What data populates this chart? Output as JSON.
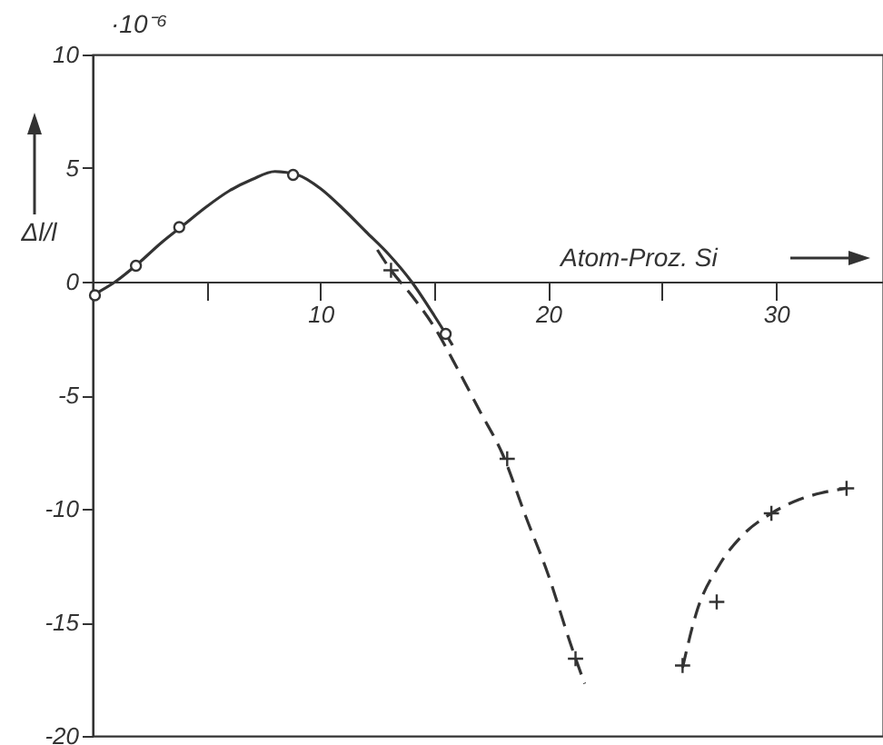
{
  "chart_data": {
    "type": "line",
    "xlabel": "Atom-Proz. Si",
    "ylabel": "Δl/l",
    "annotations": [
      "·10⁻⁶"
    ],
    "xlim": [
      0,
      34.7
    ],
    "ylim": [
      -20,
      10
    ],
    "xticks": [
      {
        "value": 5,
        "label": null
      },
      10,
      {
        "value": 15,
        "label": null
      },
      20,
      {
        "value": 25,
        "label": null
      },
      30
    ],
    "yticks": [
      -20,
      -15,
      -10,
      -5,
      0,
      5,
      10
    ],
    "series": [
      {
        "type": "line",
        "color": "#333333",
        "line_style": "solid",
        "marker": "none",
        "x": [
          0,
          1,
          2,
          3,
          4,
          5,
          6,
          7,
          8,
          9,
          10,
          11,
          12,
          13,
          14,
          15,
          15.5,
          15.8
        ],
        "values": [
          -0.6,
          0,
          0.8,
          1.7,
          2.5,
          3.3,
          4.0,
          4.5,
          4.85,
          4.7,
          4.1,
          3.2,
          2.2,
          1.2,
          0,
          -1.5,
          -2.3,
          -2.8
        ]
      },
      {
        "type": "line",
        "color": "#333333",
        "line_style": "dashed",
        "marker": "none",
        "x": [
          12.5,
          13.1,
          14,
          15,
          16,
          17,
          18,
          19,
          20,
          21,
          21.6
        ],
        "values": [
          1.4,
          0.5,
          -0.6,
          -2.0,
          -3.8,
          -5.7,
          -7.6,
          -10.3,
          -12.9,
          -16.0,
          -17.7
        ]
      },
      {
        "type": "line",
        "color": "#333333",
        "line_style": "dashed",
        "marker": "none",
        "x": [
          25.9,
          26.5,
          27.5,
          28.5,
          29.8,
          31,
          32,
          33.1
        ],
        "values": [
          -17.0,
          -14.6,
          -12.5,
          -11.2,
          -10.2,
          -9.6,
          -9.3,
          -9.1
        ]
      },
      {
        "type": "scatter",
        "color": "#333333",
        "marker": "circle",
        "x": [
          0.1,
          1.9,
          3.8,
          8.8,
          15.5
        ],
        "values": [
          -0.6,
          0.7,
          2.4,
          4.7,
          -2.3
        ]
      },
      {
        "type": "scatter",
        "color": "#333333",
        "marker": "cross",
        "x": [
          13.1,
          18.2,
          21.2,
          25.9,
          27.4,
          29.8,
          33.1
        ],
        "values": [
          0.5,
          -7.8,
          -16.6,
          -16.9,
          -14.1,
          -10.2,
          -9.1
        ]
      }
    ]
  }
}
